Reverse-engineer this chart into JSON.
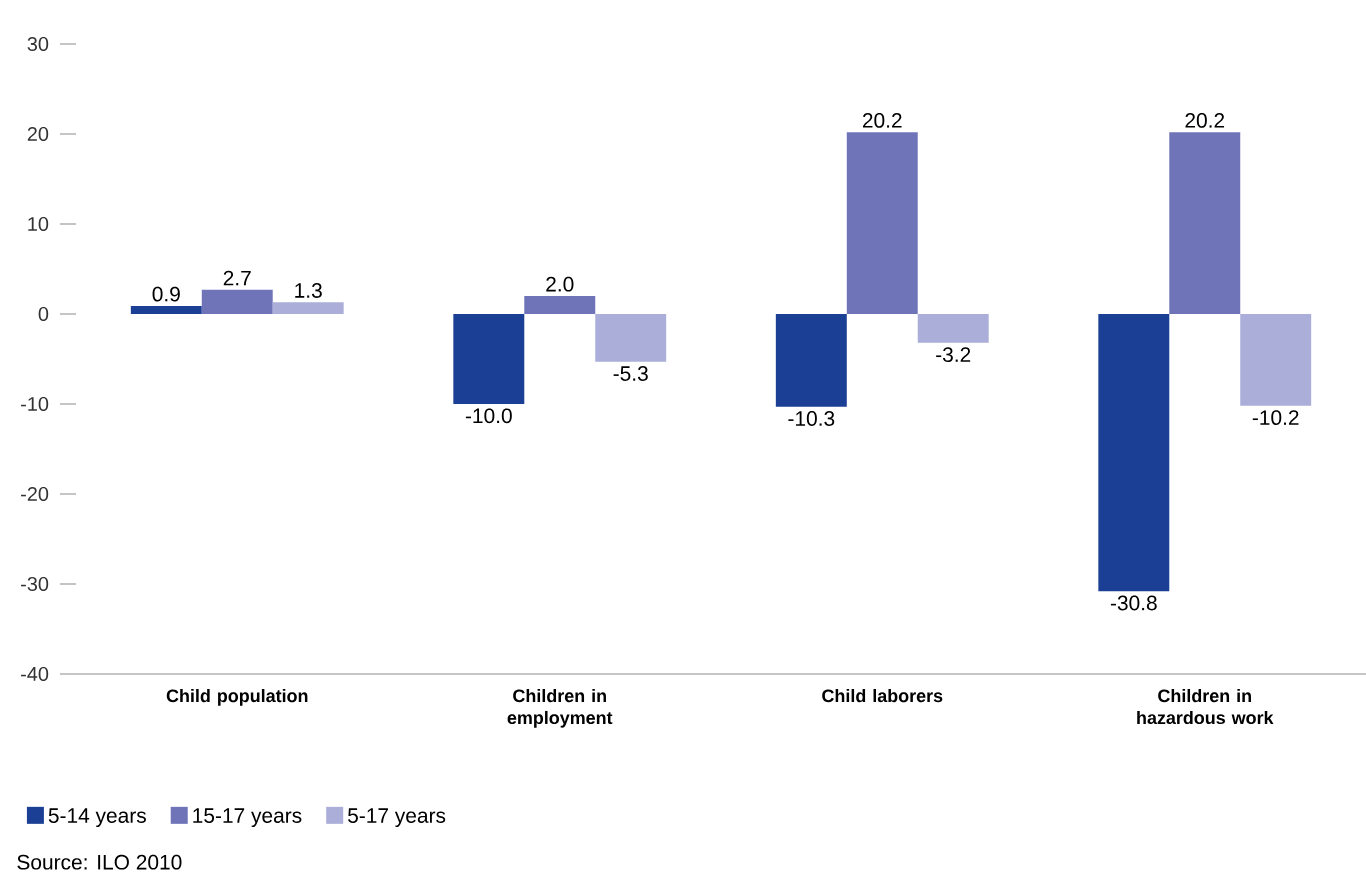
{
  "chart_data": {
    "type": "bar",
    "categories": [
      "Child population",
      "Children in employment",
      "Child laborers",
      "Children in hazardous work"
    ],
    "series": [
      {
        "name": "5-14 years",
        "color": "#1b3f94",
        "values": [
          0.9,
          -10.0,
          -10.3,
          -30.8
        ],
        "value_labels": [
          "0.9",
          "-10.0",
          "-10.3",
          "-30.8"
        ]
      },
      {
        "name": "15-17 years",
        "color": "#6f74b9",
        "values": [
          2.7,
          2.0,
          20.2,
          20.2
        ],
        "value_labels": [
          "2.7",
          "2.0",
          "20.2",
          "20.2"
        ]
      },
      {
        "name": "5-17 years",
        "color": "#abaed8",
        "values": [
          1.3,
          -5.3,
          -3.2,
          -10.2
        ],
        "value_labels": [
          "1.3",
          "-5.3",
          "-3.2",
          "-10.2"
        ]
      }
    ],
    "ylim": [
      -40,
      30
    ],
    "yticks": [
      -40,
      -30,
      -20,
      -10,
      0,
      10,
      20,
      30
    ],
    "legend": "bottom",
    "annotations": [
      "Source: ILO 2010"
    ]
  }
}
